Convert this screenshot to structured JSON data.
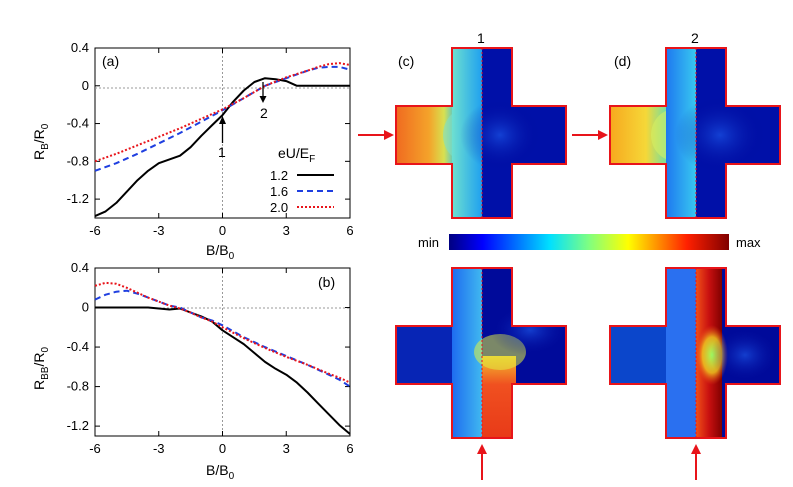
{
  "chart_data": [
    {
      "type": "line",
      "panel_label": "(a)",
      "xlabel": "B/B",
      "xlabel_sub": "0",
      "ylabel": "R",
      "ylabel_sub": "B",
      "ylabel_den": "/R",
      "ylabel_den_sub": "0",
      "xlim": [
        -6,
        6
      ],
      "ylim": [
        -1.4,
        0.4
      ],
      "xticks": [
        -6,
        -3,
        0,
        3,
        6
      ],
      "yticks": [
        0.4,
        0,
        -0.4,
        -0.8,
        -1.2
      ],
      "legend_title": "eU/E",
      "legend_title_sub": "F",
      "series": [
        {
          "name": "1.2",
          "color": "#000000",
          "dash": "",
          "x": [
            -6,
            -5.5,
            -5,
            -4.5,
            -4,
            -3.5,
            -3,
            -2.5,
            -2,
            -1.5,
            -1,
            -0.5,
            0,
            0.5,
            1,
            1.5,
            2,
            2.5,
            3,
            3.5,
            4,
            4.5,
            5,
            5.5,
            6
          ],
          "y": [
            -1.38,
            -1.33,
            -1.24,
            -1.12,
            -1.0,
            -0.9,
            -0.82,
            -0.78,
            -0.74,
            -0.65,
            -0.53,
            -0.42,
            -0.31,
            -0.17,
            -0.05,
            0.04,
            0.08,
            0.07,
            0.05,
            0.0,
            0.0,
            0.0,
            0.0,
            0.0,
            0.0
          ]
        },
        {
          "name": "1.6",
          "color": "#1f3fe0",
          "dash": "6,4",
          "x": [
            -6,
            -5,
            -4,
            -3,
            -2,
            -1,
            0,
            1,
            2,
            3,
            4,
            4.5,
            5,
            5.5,
            6
          ],
          "y": [
            -0.9,
            -0.82,
            -0.72,
            -0.61,
            -0.5,
            -0.38,
            -0.26,
            -0.13,
            0.0,
            0.08,
            0.16,
            0.19,
            0.2,
            0.2,
            0.17
          ]
        },
        {
          "name": "2.0",
          "color": "#e8141a",
          "dash": "2,2",
          "x": [
            -6,
            -5,
            -4,
            -3,
            -2,
            -1,
            0,
            1,
            2,
            3,
            4,
            4.5,
            5,
            5.5,
            6
          ],
          "y": [
            -0.8,
            -0.72,
            -0.63,
            -0.54,
            -0.45,
            -0.35,
            -0.25,
            -0.13,
            0.0,
            0.09,
            0.16,
            0.2,
            0.23,
            0.24,
            0.22
          ]
        }
      ],
      "annotations": [
        {
          "text": "1",
          "x": 0,
          "y": -0.3,
          "direction": "up"
        },
        {
          "text": "2",
          "x": 1.9,
          "y": 0.07,
          "direction": "down"
        }
      ]
    },
    {
      "type": "line",
      "panel_label": "(b)",
      "xlabel": "B/B",
      "xlabel_sub": "0",
      "ylabel": "R",
      "ylabel_sub": "BB",
      "ylabel_den": "/R",
      "ylabel_den_sub": "0",
      "xlim": [
        -6,
        6
      ],
      "ylim": [
        -1.3,
        0.4
      ],
      "xticks": [
        -6,
        -3,
        0,
        3,
        6
      ],
      "yticks": [
        0.4,
        0,
        -0.4,
        -0.8,
        -1.2
      ],
      "series": [
        {
          "name": "1.2",
          "color": "#000000",
          "dash": "",
          "x": [
            -6,
            -5,
            -4,
            -3.5,
            -3,
            -2.5,
            -2,
            -1.5,
            -1,
            -0.5,
            0,
            0.5,
            1,
            1.5,
            2,
            2.5,
            3,
            3.5,
            4,
            4.5,
            5,
            5.5,
            6
          ],
          "y": [
            0,
            0,
            0,
            0,
            -0.01,
            -0.02,
            -0.01,
            -0.05,
            -0.09,
            -0.14,
            -0.23,
            -0.3,
            -0.37,
            -0.46,
            -0.55,
            -0.62,
            -0.68,
            -0.76,
            -0.86,
            -0.97,
            -1.08,
            -1.19,
            -1.28
          ]
        },
        {
          "name": "1.6",
          "color": "#1f3fe0",
          "dash": "6,4",
          "x": [
            -6,
            -5.5,
            -5,
            -4.5,
            -4,
            -3.5,
            -3,
            -2.5,
            -2,
            -1.5,
            -1,
            -0.5,
            0,
            1,
            2,
            3,
            4,
            5,
            5.5,
            6
          ],
          "y": [
            0.08,
            0.13,
            0.16,
            0.17,
            0.14,
            0.1,
            0.06,
            0.02,
            0.0,
            -0.05,
            -0.1,
            -0.13,
            -0.18,
            -0.3,
            -0.4,
            -0.49,
            -0.58,
            -0.68,
            -0.73,
            -0.8
          ]
        },
        {
          "name": "2.0",
          "color": "#e8141a",
          "dash": "2,2",
          "x": [
            -6,
            -5.5,
            -5,
            -4.5,
            -4,
            -3.5,
            -3,
            -2.5,
            -2,
            -1.5,
            -1,
            -0.5,
            0,
            1,
            2,
            3,
            4,
            5,
            5.5,
            6
          ],
          "y": [
            0.22,
            0.25,
            0.24,
            0.2,
            0.15,
            0.1,
            0.06,
            0.02,
            -0.01,
            -0.05,
            -0.1,
            -0.14,
            -0.2,
            -0.31,
            -0.41,
            -0.5,
            -0.58,
            -0.67,
            -0.71,
            -0.76
          ]
        }
      ]
    },
    {
      "type": "heatmap",
      "colorbar_min_label": "min",
      "colorbar_max_label": "max",
      "panels": [
        {
          "label": "(c)",
          "column_label": "1",
          "injection": "left"
        },
        {
          "label": "(d)",
          "column_label": "2",
          "injection": "left"
        },
        {
          "label": "",
          "column_label": "",
          "injection": "bottom"
        },
        {
          "label": "",
          "column_label": "",
          "injection": "bottom"
        }
      ]
    }
  ]
}
